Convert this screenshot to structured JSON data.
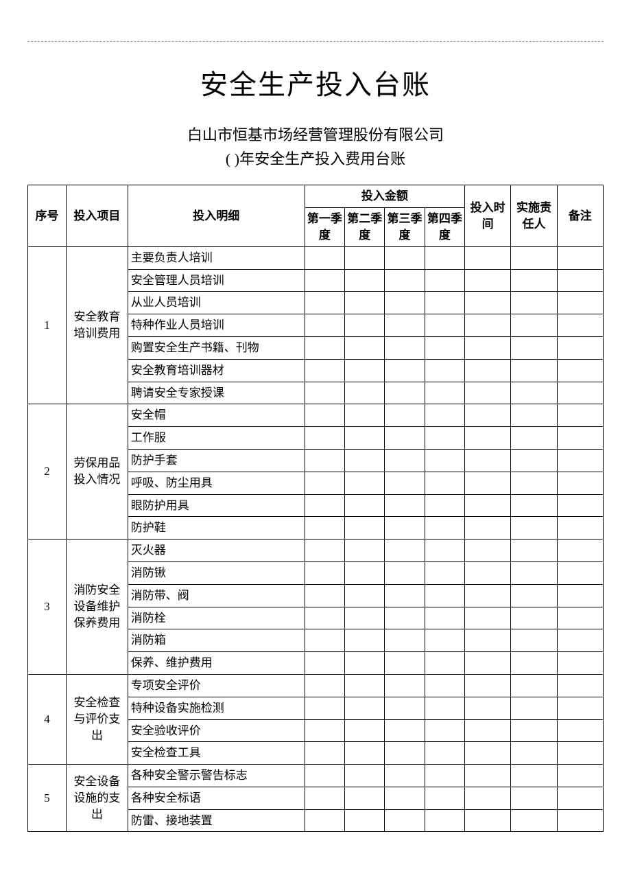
{
  "page": {
    "main_title": "安全生产投入台账",
    "subtitle_line1": "白山市恒基市场经营管理股份有限公司",
    "subtitle_line2": "( )年安全生产投入费用台账"
  },
  "table": {
    "headers": {
      "seq": "序号",
      "project": "投入项目",
      "detail": "投入明细",
      "amount_group": "投入金额",
      "q1": "第一季度",
      "q2": "第二季度",
      "q3": "第三季度",
      "q4": "第四季度",
      "time": "投入时间",
      "person": "实施责任人",
      "remark": "备注"
    },
    "styling": {
      "border_color": "#000000",
      "background_color": "#ffffff",
      "font_family": "SimSun",
      "header_fontsize": 17,
      "cell_fontsize": 17,
      "title_fontsize": 40,
      "subtitle_fontsize": 22,
      "column_widths": {
        "seq": 50,
        "project": 80,
        "detail": 230,
        "q1": 52,
        "q2": 52,
        "q3": 52,
        "q4": 52,
        "time": 60,
        "person": 60,
        "remark": 60
      }
    },
    "groups": [
      {
        "seq": "1",
        "project": "安全教育培训费用",
        "details": [
          "主要负责人培训",
          "安全管理人员培训",
          "从业人员培训",
          "特种作业人员培训",
          "购置安全生产书籍、刊物",
          "安全教育培训器材",
          "聘请安全专家授课"
        ]
      },
      {
        "seq": "2",
        "project": "劳保用品投入情况",
        "details": [
          "安全帽",
          "工作服",
          "防护手套",
          "呼吸、防尘用具",
          "眼防护用具",
          "防护鞋"
        ]
      },
      {
        "seq": "3",
        "project": "消防安全设备维护保养费用",
        "details": [
          "灭火器",
          "消防锹",
          "消防带、阀",
          "消防栓",
          "消防箱",
          "保养、维护费用"
        ]
      },
      {
        "seq": "4",
        "project": "安全检查与评价支出",
        "details": [
          "专项安全评价",
          "特种设备实施检测",
          "安全验收评价",
          "安全检查工具"
        ]
      },
      {
        "seq": "5",
        "project": "安全设备设施的支出",
        "details": [
          "各种安全警示警告标志",
          "各种安全标语",
          "防雷、接地装置"
        ]
      }
    ]
  }
}
